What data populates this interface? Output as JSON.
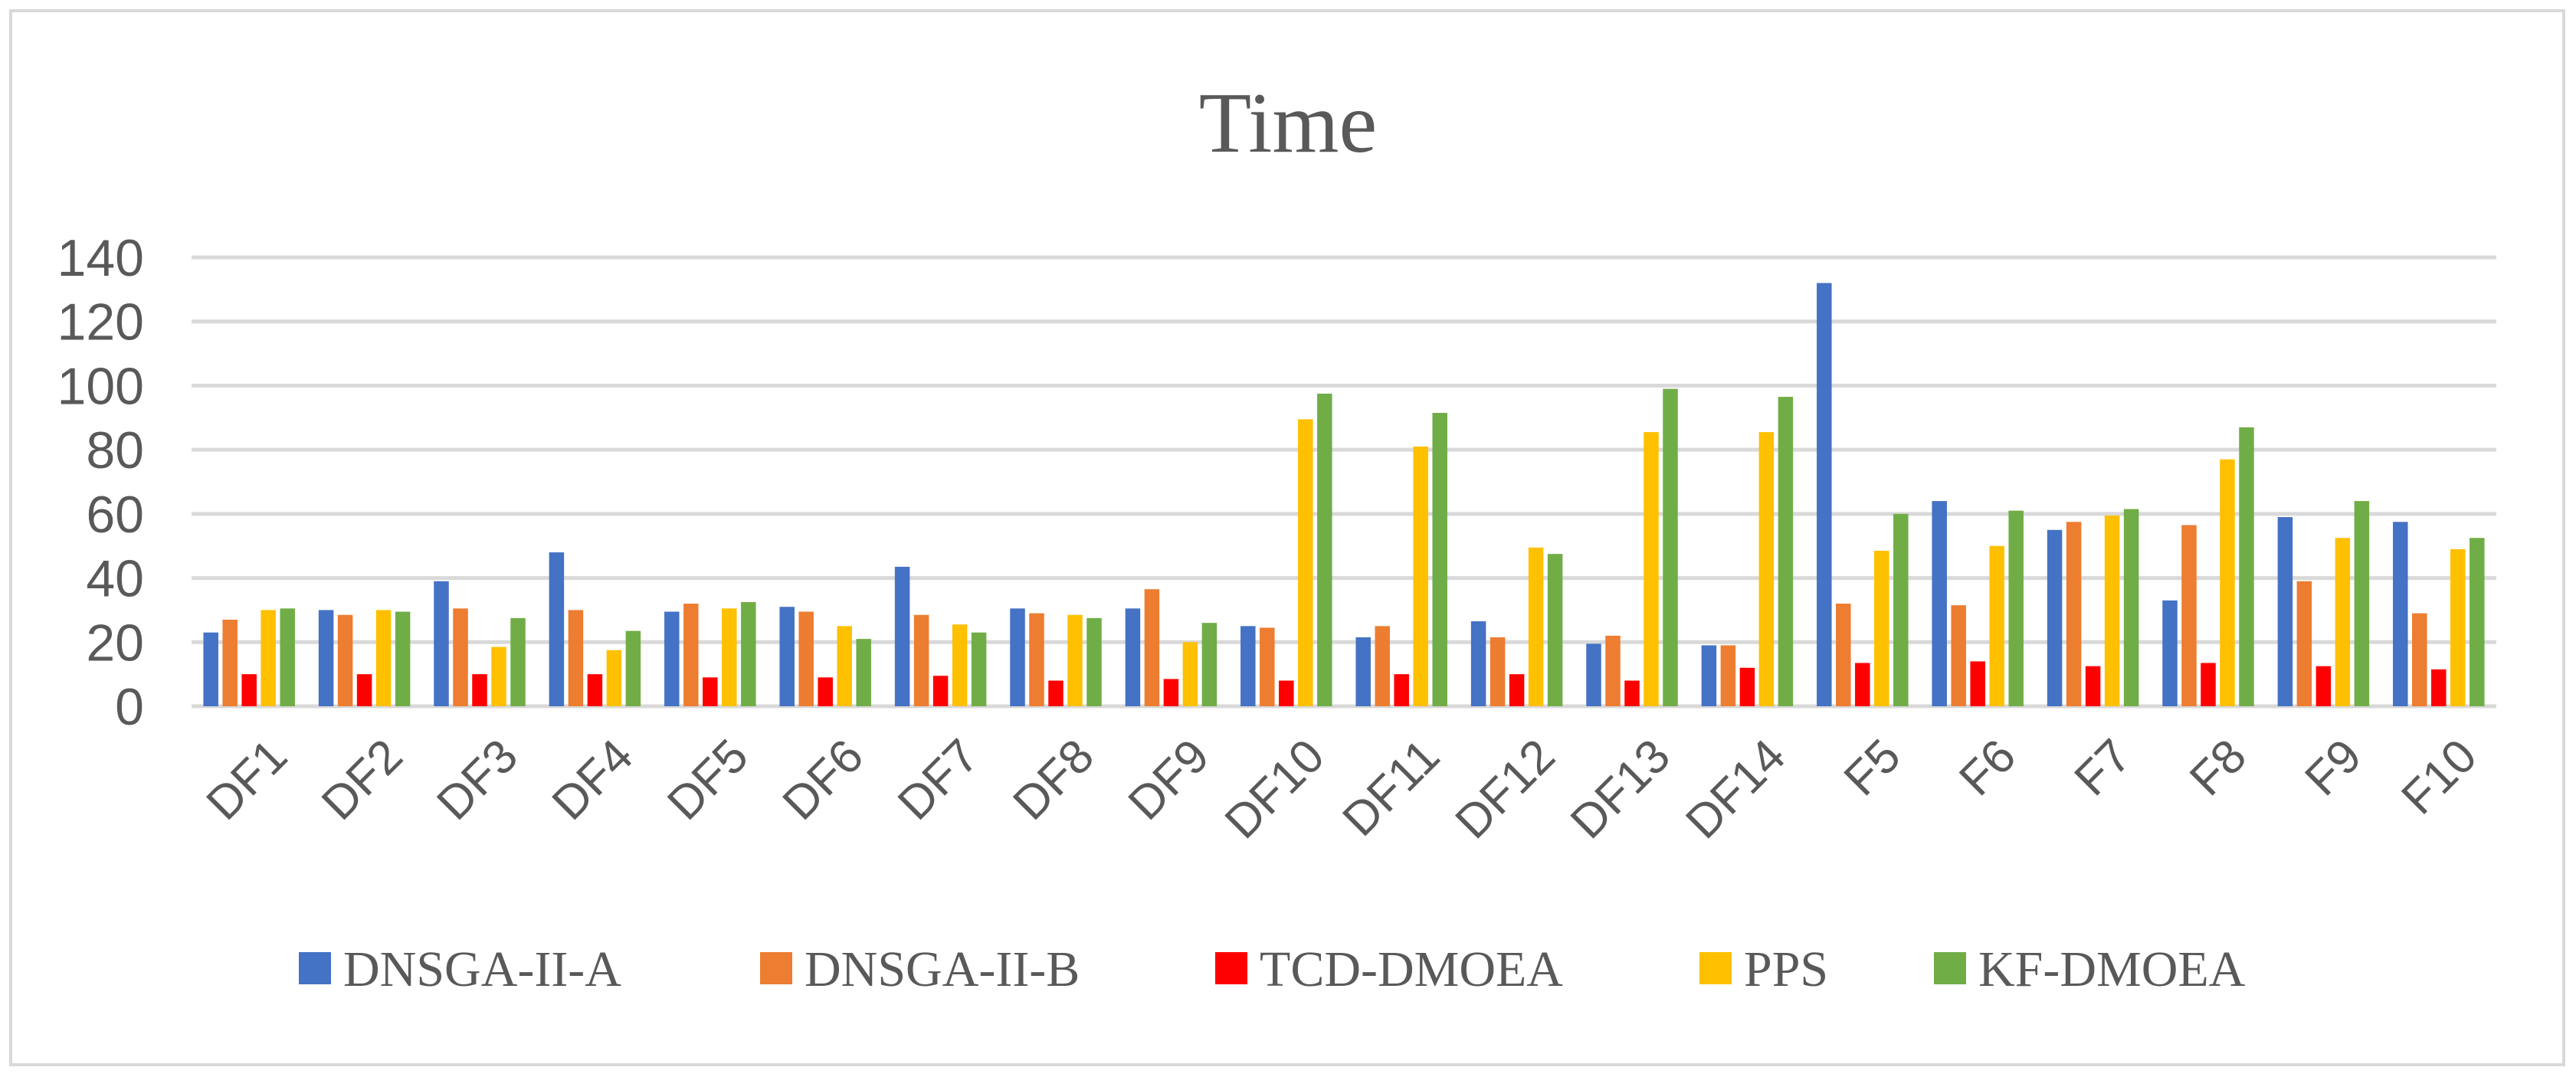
{
  "chart_data": {
    "type": "bar",
    "title": "Time",
    "xlabel": "",
    "ylabel": "",
    "ylim": [
      0,
      140
    ],
    "yticks": [
      0,
      20,
      40,
      60,
      80,
      100,
      120,
      140
    ],
    "grid": true,
    "legend_position": "bottom",
    "categories": [
      "DF1",
      "DF2",
      "DF3",
      "DF4",
      "DF5",
      "DF6",
      "DF7",
      "DF8",
      "DF9",
      "DF10",
      "DF11",
      "DF12",
      "DF13",
      "DF14",
      "F5",
      "F6",
      "F7",
      "F8",
      "F9",
      "F10"
    ],
    "series": [
      {
        "name": "DNSGA-II-A",
        "color": "#4472c4",
        "values": [
          23,
          30,
          39,
          48,
          29.5,
          31,
          43.5,
          30.5,
          30.5,
          25,
          21.5,
          26.5,
          19.5,
          19,
          132,
          64,
          55,
          33,
          59,
          57.5
        ]
      },
      {
        "name": "DNSGA-II-B",
        "color": "#ed7d31",
        "values": [
          27,
          28.5,
          30.5,
          30,
          32,
          29.5,
          28.5,
          29,
          36.5,
          24.5,
          25,
          21.5,
          22,
          19,
          32,
          31.5,
          57.5,
          56.5,
          39,
          29
        ]
      },
      {
        "name": "TCD-DMOEA",
        "color": "#ff0000",
        "values": [
          10,
          10,
          10,
          10,
          9,
          9,
          9.5,
          8,
          8.5,
          8,
          10,
          10,
          8,
          12,
          13.5,
          14,
          12.5,
          13.5,
          12.5,
          11.5
        ]
      },
      {
        "name": "PPS",
        "color": "#ffc000",
        "values": [
          30,
          30,
          18.5,
          17.5,
          30.5,
          25,
          25.5,
          28.5,
          20,
          89.5,
          81,
          49.5,
          85.5,
          85.5,
          48.5,
          50,
          59.5,
          77,
          52.5,
          49
        ]
      },
      {
        "name": "KF-DMOEA",
        "color": "#70ad47",
        "values": [
          30.5,
          29.5,
          27.5,
          23.5,
          32.5,
          21,
          23,
          27.5,
          26,
          97.5,
          91.5,
          47.5,
          99,
          96.5,
          60,
          61,
          61.5,
          87,
          64,
          52.5
        ]
      }
    ]
  }
}
